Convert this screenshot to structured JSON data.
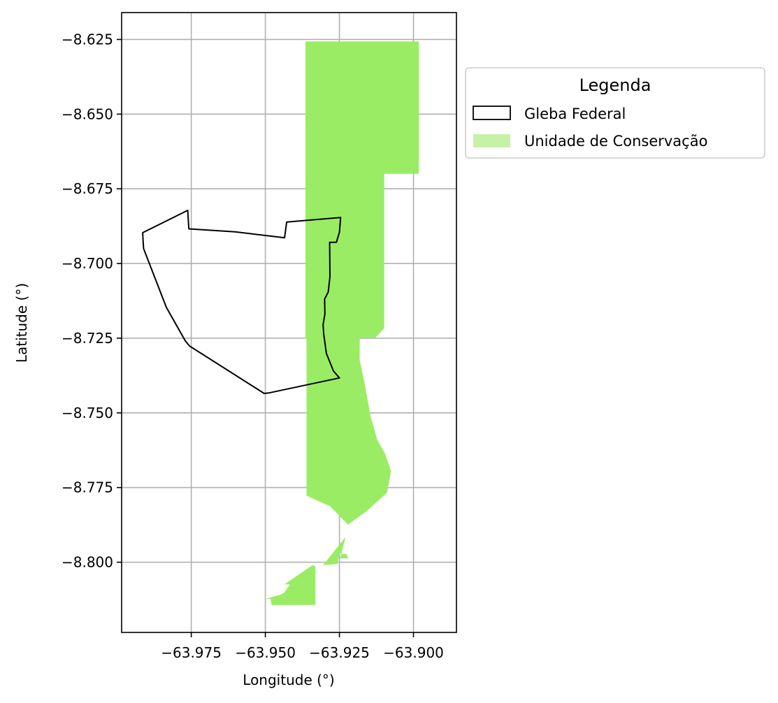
{
  "chart_data": {
    "type": "map",
    "xlabel": "Longitude (°)",
    "ylabel": "Latitude (°)",
    "xlim": [
      -63.9985,
      -63.8855
    ],
    "ylim": [
      -8.8235,
      -8.616
    ],
    "grid": true,
    "x_ticks": [
      -63.975,
      -63.95,
      -63.925,
      -63.9
    ],
    "x_tick_labels": [
      "−63.975",
      "−63.950",
      "−63.925",
      "−63.900"
    ],
    "y_ticks": [
      -8.625,
      -8.65,
      -8.675,
      -8.7,
      -8.725,
      -8.75,
      -8.775,
      -8.8
    ],
    "y_tick_labels": [
      "−8.625",
      "−8.650",
      "−8.675",
      "−8.700",
      "−8.725",
      "−8.750",
      "−8.775",
      "−8.800"
    ],
    "legend": {
      "title": "Legenda",
      "placement": "outside-upper-right",
      "entries": [
        {
          "label": "Gleba Federal",
          "style": "outline",
          "edge_color": "#000000"
        },
        {
          "label": "Unidade de Conservação",
          "style": "fill",
          "fill_color": "#9bec65"
        }
      ]
    },
    "layers": [
      {
        "name": "Unidade de Conservação",
        "fill": "#9bec65",
        "polygons": [
          [
            [
              -63.93645,
              -8.62565
            ],
            [
              -63.8982,
              -8.62565
            ],
            [
              -63.8982,
              -8.67
            ],
            [
              -63.9099,
              -8.67
            ],
            [
              -63.9099,
              -8.7217
            ],
            [
              -63.9129,
              -8.7249
            ],
            [
              -63.9181,
              -8.7249
            ],
            [
              -63.9182,
              -8.7321
            ],
            [
              -63.9165,
              -8.7402
            ],
            [
              -63.9145,
              -8.7511
            ],
            [
              -63.9122,
              -8.7591
            ],
            [
              -63.9096,
              -8.7636
            ],
            [
              -63.9076,
              -8.7695
            ],
            [
              -63.9089,
              -8.7767
            ],
            [
              -63.9158,
              -8.7829
            ],
            [
              -63.9221,
              -8.7874
            ],
            [
              -63.9282,
              -8.7812
            ],
            [
              -63.9322,
              -8.7795
            ],
            [
              -63.9361,
              -8.7777
            ],
            [
              -63.9361,
              -8.7252
            ],
            [
              -63.93645,
              -8.7252
            ]
          ],
          [
            [
              -63.9229,
              -8.7915
            ],
            [
              -63.9304,
              -8.8008
            ],
            [
              -63.9305,
              -8.801
            ],
            [
              -63.9257,
              -8.8006
            ],
            [
              -63.925,
              -8.7972
            ],
            [
              -63.9226,
              -8.7972
            ],
            [
              -63.922,
              -8.7986
            ],
            [
              -63.9248,
              -8.7988
            ]
          ],
          [
            [
              -63.9341,
              -8.801
            ],
            [
              -63.9434,
              -8.8073
            ],
            [
              -63.9441,
              -8.8074
            ],
            [
              -63.9417,
              -8.8074
            ],
            [
              -63.9429,
              -8.8091
            ],
            [
              -63.9436,
              -8.8102
            ],
            [
              -63.945,
              -8.8109
            ],
            [
              -63.9501,
              -8.8123
            ],
            [
              -63.9482,
              -8.8123
            ],
            [
              -63.9479,
              -8.8143
            ],
            [
              -63.9331,
              -8.8143
            ],
            [
              -63.9331,
              -8.8013
            ]
          ]
        ]
      },
      {
        "name": "Gleba Federal",
        "stroke": "#000000",
        "polygons": [
          [
            [
              -63.9914,
              -8.6897
            ],
            [
              -63.9762,
              -8.6822
            ],
            [
              -63.9758,
              -8.6884
            ],
            [
              -63.9602,
              -8.6894
            ],
            [
              -63.9435,
              -8.6914
            ],
            [
              -63.9428,
              -8.6861
            ],
            [
              -63.9246,
              -8.6846
            ],
            [
              -63.925,
              -8.6895
            ],
            [
              -63.926,
              -8.6929
            ],
            [
              -63.9283,
              -8.6929
            ],
            [
              -63.9282,
              -8.7045
            ],
            [
              -63.9288,
              -8.7096
            ],
            [
              -63.93,
              -8.7119
            ],
            [
              -63.9299,
              -8.7169
            ],
            [
              -63.9305,
              -8.7205
            ],
            [
              -63.9303,
              -8.7236
            ],
            [
              -63.9294,
              -8.7301
            ],
            [
              -63.927,
              -8.736
            ],
            [
              -63.925,
              -8.7383
            ],
            [
              -63.9487,
              -8.7433
            ],
            [
              -63.9504,
              -8.7435
            ],
            [
              -63.9756,
              -8.7276
            ],
            [
              -63.977,
              -8.7259
            ],
            [
              -63.9834,
              -8.7147
            ],
            [
              -63.9911,
              -8.695
            ],
            [
              -63.9912,
              -8.6931
            ]
          ]
        ]
      }
    ]
  }
}
